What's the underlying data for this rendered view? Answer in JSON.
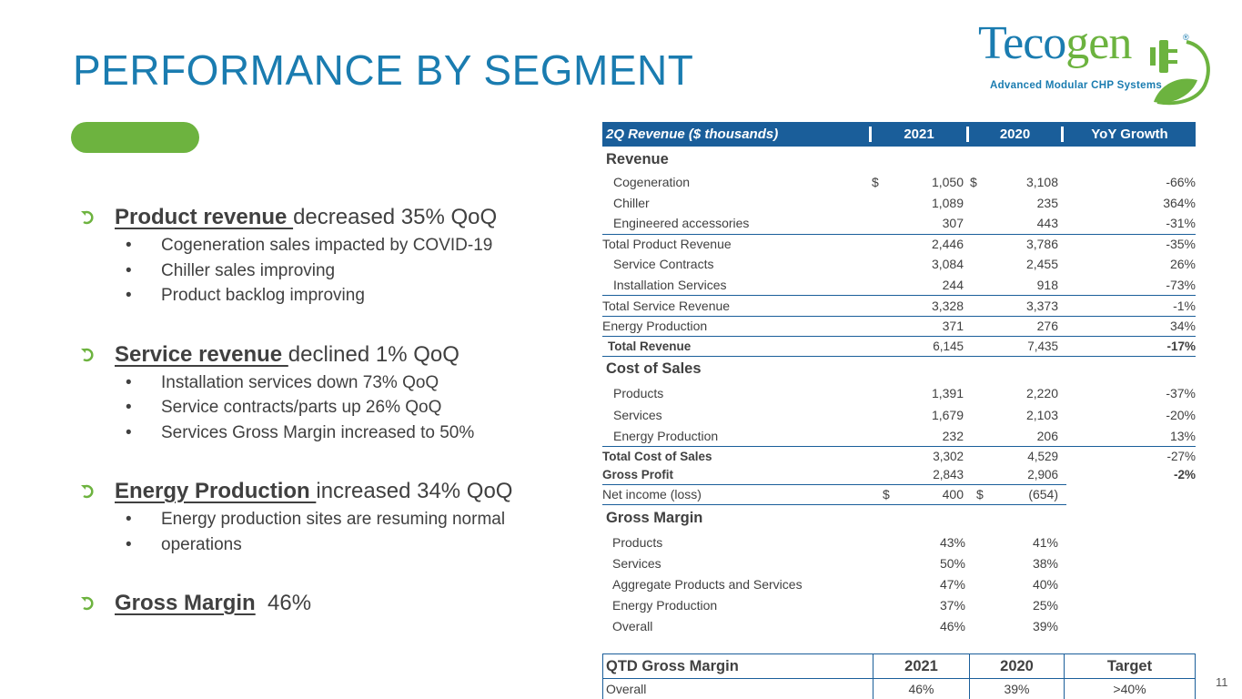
{
  "slide": {
    "title": "PERFORMANCE BY SEGMENT",
    "page_number": "11"
  },
  "logo": {
    "word_main": "Teco",
    "word_accent": "gen",
    "registered": "®",
    "tagline": "Advanced Modular CHP Systems",
    "colors": {
      "blue": "#1a7cb0",
      "green": "#6cb33f"
    }
  },
  "bullets": {
    "product": {
      "head": "Product revenue ",
      "tail": "decreased 35% QoQ",
      "subs": [
        "Cogeneration sales impacted by COVID-19",
        "Chiller sales improving",
        "Product backlog improving"
      ]
    },
    "service": {
      "head": "Service revenue ",
      "tail": "declined 1% QoQ",
      "subs": [
        "Installation services down 73% QoQ",
        "Service contracts/parts up 26% QoQ",
        "Services Gross Margin increased to 50%"
      ]
    },
    "energy": {
      "head": "Energy Production ",
      "tail": " increased 34% QoQ",
      "subs": [
        "Energy production sites are resuming normal",
        "operations"
      ]
    },
    "margin": {
      "head": "Gross Margin",
      "tail": "  46%"
    }
  },
  "revenue_table": {
    "headers": [
      "2Q Revenue ($ thousands)",
      "2021",
      "2020",
      "YoY Growth"
    ],
    "sections": {
      "revenue": "Revenue",
      "cost": "Cost of Sales",
      "margin": "Gross Margin"
    },
    "rows": {
      "cogeneration": {
        "label": "Cogeneration",
        "d1": "$",
        "v2021": "1,050",
        "d2": "$",
        "v2020": "3,108",
        "yoy": "-66%"
      },
      "chiller": {
        "label": "Chiller",
        "v2021": "1,089",
        "v2020": "235",
        "yoy": "364%"
      },
      "engineered": {
        "label": "Engineered accessories",
        "v2021": "307",
        "v2020": "443",
        "yoy": "-31%"
      },
      "total_product": {
        "label": "Total Product Revenue",
        "v2021": "2,446",
        "v2020": "3,786",
        "yoy": "-35%"
      },
      "service_contracts": {
        "label": "Service Contracts",
        "v2021": "3,084",
        "v2020": "2,455",
        "yoy": "26%"
      },
      "installation": {
        "label": "Installation Services",
        "v2021": "244",
        "v2020": "918",
        "yoy": "-73%"
      },
      "total_service": {
        "label": "Total Service Revenue",
        "v2021": "3,328",
        "v2020": "3,373",
        "yoy": "-1%"
      },
      "energy": {
        "label": "Energy Production",
        "v2021": "371",
        "v2020": "276",
        "yoy": "34%"
      },
      "total_revenue": {
        "label": "Total Revenue",
        "v2021": "6,145",
        "v2020": "7,435",
        "yoy": "-17%"
      },
      "cos_products": {
        "label": "Products",
        "v2021": "1,391",
        "v2020": "2,220",
        "yoy": "-37%"
      },
      "cos_services": {
        "label": "Services",
        "v2021": "1,679",
        "v2020": "2,103",
        "yoy": "-20%"
      },
      "cos_energy": {
        "label": "Energy Production",
        "v2021": "232",
        "v2020": "206",
        "yoy": "13%"
      },
      "total_cos": {
        "label": "Total Cost of Sales",
        "v2021": "3,302",
        "v2020": "4,529",
        "yoy": "-27%"
      },
      "gross_profit": {
        "label": "Gross Profit",
        "v2021": "2,843",
        "v2020": "2,906",
        "yoy": "-2%"
      },
      "net_income": {
        "label": "Net income (loss)",
        "d1": "$",
        "v2021": "400",
        "d2": "$",
        "v2020": "(654)"
      },
      "gm_products": {
        "label": "Products",
        "v2021": "43%",
        "v2020": "41%"
      },
      "gm_services": {
        "label": "Services",
        "v2021": "50%",
        "v2020": "38%"
      },
      "gm_aggregate": {
        "label": "Aggregate Products and Services",
        "v2021": "47%",
        "v2020": "40%"
      },
      "gm_energy": {
        "label": "Energy Production",
        "v2021": "37%",
        "v2020": "25%"
      },
      "gm_overall": {
        "label": "Overall",
        "v2021": "46%",
        "v2020": "39%"
      }
    }
  },
  "qtd_table": {
    "headers": [
      "QTD Gross Margin",
      "2021",
      "2020",
      "Target"
    ],
    "row": {
      "label": "Overall",
      "v2021": "46%",
      "v2020": "39%",
      "target": ">40%"
    }
  },
  "colors": {
    "title_blue": "#1a7cb0",
    "header_blue": "#1a5e9a",
    "accent_green": "#6db33f"
  }
}
